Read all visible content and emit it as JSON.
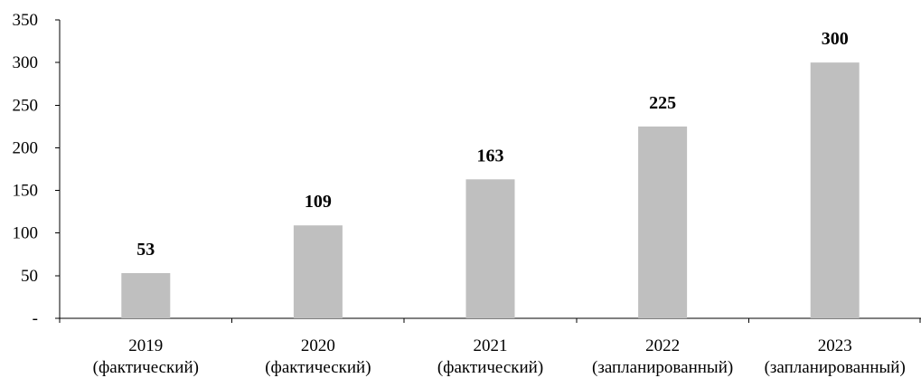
{
  "chart_data": {
    "type": "bar",
    "categories": [
      [
        "2019",
        "(фактический)"
      ],
      [
        "2020",
        "(фактический)"
      ],
      [
        "2021",
        "(фактический)"
      ],
      [
        "2022",
        "(запланированный)"
      ],
      [
        "2023",
        "(запланированный)"
      ]
    ],
    "values": [
      53,
      109,
      163,
      225,
      300
    ],
    "data_labels": [
      "53",
      "109",
      "163",
      "225",
      "300"
    ],
    "ylim": [
      0,
      350
    ],
    "yticks": [
      0,
      50,
      100,
      150,
      200,
      250,
      300,
      350
    ],
    "ytick_labels": [
      "-",
      "50",
      "100",
      "150",
      "200",
      "250",
      "300",
      "350"
    ],
    "bar_color": "#bfbfbf",
    "grid": false,
    "title": "",
    "xlabel": "",
    "ylabel": ""
  }
}
